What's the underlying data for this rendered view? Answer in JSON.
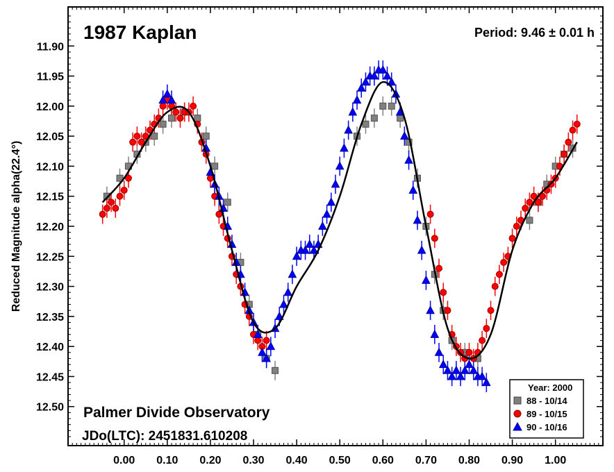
{
  "chart_data": {
    "type": "scatter",
    "title": "1987 Kaplan",
    "period_label": "Period: 9.46 ± 0.01 h",
    "observatory": "Palmer Divide Observatory",
    "jd_label": "JDo(LTC): 2451831.610208",
    "xlabel": "",
    "ylabel": "Reduced Magnitude alpha(22.4°)",
    "xlim": [
      -0.13,
      1.11
    ],
    "ylim": [
      11.835,
      12.565
    ],
    "y_inverted": true,
    "x_ticks": [
      0.0,
      0.1,
      0.2,
      0.3,
      0.4,
      0.5,
      0.6,
      0.7,
      0.8,
      0.9,
      1.0
    ],
    "x_tick_labels": [
      "0.00",
      "0.10",
      "0.20",
      "0.30",
      "0.40",
      "0.50",
      "0.60",
      "0.70",
      "0.80",
      "0.90",
      "1.00"
    ],
    "y_ticks": [
      11.9,
      11.95,
      12.0,
      12.05,
      12.1,
      12.15,
      12.2,
      12.25,
      12.3,
      12.35,
      12.4,
      12.45,
      12.5
    ],
    "y_tick_labels": [
      "11.90",
      "11.95",
      "12.00",
      "12.05",
      "12.10",
      "12.15",
      "12.20",
      "12.25",
      "12.30",
      "12.35",
      "12.40",
      "12.45",
      "12.50"
    ],
    "legend": {
      "title": "Year: 2000",
      "position": "bottom-right",
      "entries": [
        {
          "label": "88 - 10/14",
          "marker": "square",
          "color": "#808080"
        },
        {
          "label": "89 - 10/15",
          "marker": "circle",
          "color": "#ff0000"
        },
        {
          "label": "90 - 10/16",
          "marker": "triangle",
          "color": "#0000ff"
        }
      ]
    },
    "fit_curve": {
      "name": "Fourier fit",
      "color": "#000000",
      "x": [
        -0.05,
        0.0,
        0.05,
        0.1,
        0.15,
        0.2,
        0.25,
        0.3,
        0.35,
        0.4,
        0.45,
        0.5,
        0.55,
        0.6,
        0.65,
        0.7,
        0.75,
        0.8,
        0.85,
        0.9,
        0.95,
        1.0,
        1.05
      ],
      "y": [
        12.16,
        12.12,
        12.06,
        12.01,
        12.01,
        12.1,
        12.24,
        12.36,
        12.37,
        12.3,
        12.24,
        12.15,
        12.03,
        11.96,
        12.02,
        12.2,
        12.37,
        12.42,
        12.38,
        12.24,
        12.16,
        12.12,
        12.06
      ]
    },
    "series": [
      {
        "name": "88 - 10/14",
        "marker": "square",
        "color": "#808080",
        "x": [
          -0.04,
          -0.01,
          0.01,
          0.03,
          0.05,
          0.07,
          0.09,
          0.11,
          0.14,
          0.17,
          0.19,
          0.21,
          0.24,
          0.27,
          0.29,
          0.31,
          0.33,
          0.35,
          0.54,
          0.56,
          0.58,
          0.6,
          0.62,
          0.64,
          0.66,
          0.68,
          0.7,
          0.72,
          0.74,
          0.76,
          0.79,
          0.82,
          0.94,
          0.96,
          0.98,
          1.0,
          1.02,
          1.04
        ],
        "y": [
          12.15,
          12.12,
          12.1,
          12.08,
          12.06,
          12.05,
          12.03,
          12.02,
          12.01,
          12.02,
          12.05,
          12.1,
          12.16,
          12.26,
          12.33,
          12.38,
          12.42,
          12.44,
          12.05,
          12.03,
          12.02,
          12.0,
          12.0,
          12.02,
          12.06,
          12.12,
          12.2,
          12.28,
          12.34,
          12.39,
          12.41,
          12.42,
          12.19,
          12.16,
          12.13,
          12.1,
          12.08,
          12.07
        ]
      },
      {
        "name": "89 - 10/15",
        "marker": "circle",
        "color": "#ff0000",
        "x": [
          -0.05,
          -0.04,
          -0.03,
          -0.02,
          -0.01,
          0.0,
          0.01,
          0.02,
          0.03,
          0.04,
          0.05,
          0.06,
          0.07,
          0.08,
          0.09,
          0.1,
          0.11,
          0.12,
          0.13,
          0.14,
          0.15,
          0.16,
          0.17,
          0.18,
          0.19,
          0.2,
          0.21,
          0.22,
          0.23,
          0.24,
          0.25,
          0.26,
          0.27,
          0.28,
          0.29,
          0.3,
          0.31,
          0.32,
          0.33,
          0.71,
          0.72,
          0.73,
          0.74,
          0.75,
          0.76,
          0.77,
          0.78,
          0.79,
          0.8,
          0.81,
          0.82,
          0.83,
          0.84,
          0.85,
          0.86,
          0.87,
          0.88,
          0.89,
          0.9,
          0.91,
          0.92,
          0.93,
          0.94,
          0.95,
          0.96,
          0.97,
          0.98,
          0.99,
          1.0,
          1.01,
          1.02,
          1.03,
          1.04,
          1.05
        ],
        "y": [
          12.18,
          12.17,
          12.16,
          12.17,
          12.15,
          12.14,
          12.12,
          12.06,
          12.05,
          12.06,
          12.05,
          12.04,
          12.03,
          12.02,
          12.0,
          11.99,
          12.0,
          12.01,
          12.02,
          12.01,
          12.01,
          12.0,
          12.03,
          12.06,
          12.08,
          12.12,
          12.15,
          12.18,
          12.2,
          12.22,
          12.25,
          12.28,
          12.3,
          12.33,
          12.35,
          12.38,
          12.39,
          12.4,
          12.39,
          12.18,
          12.22,
          12.27,
          12.31,
          12.34,
          12.38,
          12.4,
          12.41,
          12.42,
          12.41,
          12.42,
          12.41,
          12.39,
          12.37,
          12.34,
          12.3,
          12.28,
          12.26,
          12.25,
          12.22,
          12.2,
          12.19,
          12.17,
          12.16,
          12.15,
          12.16,
          12.15,
          12.14,
          12.13,
          12.12,
          12.1,
          12.08,
          12.06,
          12.04,
          12.03
        ]
      },
      {
        "name": "90 - 10/16",
        "marker": "triangle",
        "color": "#0000ff",
        "x": [
          0.09,
          0.1,
          0.11,
          0.19,
          0.2,
          0.21,
          0.22,
          0.23,
          0.24,
          0.25,
          0.26,
          0.27,
          0.28,
          0.29,
          0.3,
          0.31,
          0.32,
          0.33,
          0.34,
          0.35,
          0.36,
          0.37,
          0.38,
          0.39,
          0.4,
          0.41,
          0.42,
          0.43,
          0.44,
          0.45,
          0.46,
          0.47,
          0.48,
          0.49,
          0.5,
          0.51,
          0.52,
          0.53,
          0.54,
          0.55,
          0.56,
          0.57,
          0.58,
          0.59,
          0.6,
          0.61,
          0.62,
          0.63,
          0.64,
          0.65,
          0.66,
          0.67,
          0.68,
          0.69,
          0.7,
          0.71,
          0.72,
          0.73,
          0.74,
          0.75,
          0.76,
          0.77,
          0.78,
          0.79,
          0.8,
          0.81,
          0.82,
          0.83,
          0.84
        ],
        "y": [
          11.99,
          11.98,
          11.99,
          12.07,
          12.11,
          12.13,
          12.15,
          12.17,
          12.2,
          12.23,
          12.26,
          12.28,
          12.31,
          12.34,
          12.36,
          12.38,
          12.41,
          12.42,
          12.4,
          12.37,
          12.35,
          12.33,
          12.31,
          12.28,
          12.25,
          12.24,
          12.24,
          12.23,
          12.24,
          12.23,
          12.2,
          12.18,
          12.16,
          12.13,
          12.1,
          12.07,
          12.04,
          12.01,
          11.99,
          11.97,
          11.96,
          11.95,
          11.95,
          11.94,
          11.94,
          11.95,
          11.96,
          11.98,
          12.01,
          12.05,
          12.09,
          12.14,
          12.19,
          12.24,
          12.29,
          12.34,
          12.38,
          12.41,
          12.43,
          12.44,
          12.45,
          12.44,
          12.45,
          12.44,
          12.43,
          12.44,
          12.45,
          12.45,
          12.46
        ]
      }
    ]
  }
}
